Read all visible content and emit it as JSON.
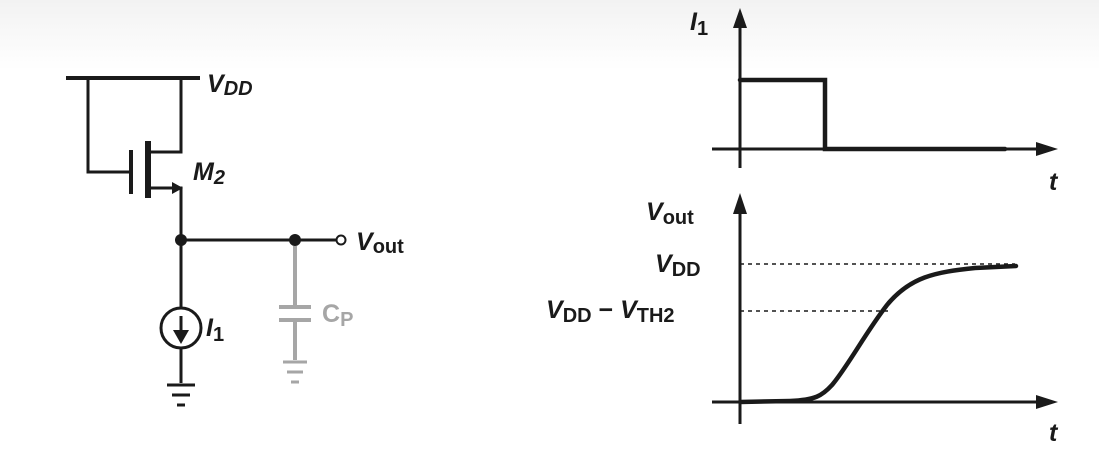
{
  "circuit": {
    "supply_label": "V",
    "supply_sub": "DD",
    "transistor_label": "M",
    "transistor_sub": "2",
    "output_label": "V",
    "output_sub": "out",
    "source_label": "I",
    "source_sub": "1",
    "cap_label": "C",
    "cap_sub": "P"
  },
  "top_plot": {
    "ylabel": "I",
    "ylabel_sub": "1",
    "xlabel": "t"
  },
  "bottom_plot": {
    "ylabel": "V",
    "ylabel_sub": "out",
    "xlabel": "t",
    "level_vdd": "V",
    "level_vdd_sub": "DD",
    "level_vdd_vth_a": "V",
    "level_vdd_vth_a_sub": "DD",
    "level_vdd_vth_minus": " − ",
    "level_vdd_vth_b": "V",
    "level_vdd_vth_b_sub": "TH2"
  }
}
